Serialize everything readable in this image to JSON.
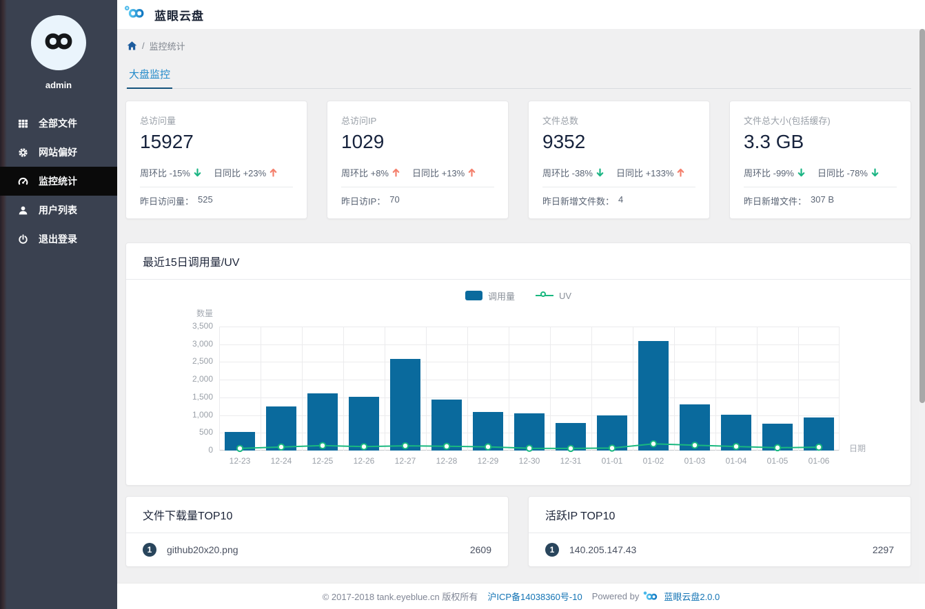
{
  "app": {
    "title": "蓝眼云盘"
  },
  "sidebar": {
    "username": "admin",
    "items": [
      {
        "name": "sidebar-item-all-files",
        "icon": "grid-icon",
        "label": "全部文件",
        "active": false
      },
      {
        "name": "sidebar-item-site-preferences",
        "icon": "gear-icon",
        "label": "网站偏好",
        "active": false
      },
      {
        "name": "sidebar-item-monitor-stats",
        "icon": "dashboard-icon",
        "label": "监控统计",
        "active": true
      },
      {
        "name": "sidebar-item-user-list",
        "icon": "user-icon",
        "label": "用户列表",
        "active": false
      },
      {
        "name": "sidebar-item-logout",
        "icon": "power-icon",
        "label": "退出登录",
        "active": false
      }
    ]
  },
  "breadcrumb": {
    "separator": "/",
    "current": "监控统计"
  },
  "tabs": {
    "active": "大盘监控"
  },
  "stat_cards": [
    {
      "name": "stat-card-total-visits",
      "label": "总访问量",
      "value": "15927",
      "trends": [
        {
          "text": "周环比 -15%",
          "dir": "down"
        },
        {
          "text": "日同比 +23%",
          "dir": "up"
        }
      ],
      "footer_label": "昨日访问量：",
      "footer_value": "525"
    },
    {
      "name": "stat-card-total-ips",
      "label": "总访问IP",
      "value": "1029",
      "trends": [
        {
          "text": "周环比 +8%",
          "dir": "up"
        },
        {
          "text": "日同比 +13%",
          "dir": "up"
        }
      ],
      "footer_label": "昨日访IP：",
      "footer_value": "70"
    },
    {
      "name": "stat-card-total-files",
      "label": "文件总数",
      "value": "9352",
      "trends": [
        {
          "text": "周环比 -38%",
          "dir": "down"
        },
        {
          "text": "日同比 +133%",
          "dir": "up"
        }
      ],
      "footer_label": "昨日新增文件数：",
      "footer_value": "4"
    },
    {
      "name": "stat-card-total-size",
      "label": "文件总大小(包括缓存)",
      "value": "3.3 GB",
      "trends": [
        {
          "text": "周环比 -99%",
          "dir": "down"
        },
        {
          "text": "日同比 -78%",
          "dir": "down"
        }
      ],
      "footer_label": "昨日新增文件：",
      "footer_value": "307 B"
    }
  ],
  "chart_data": {
    "type": "bar",
    "title": "最近15日调用量/UV",
    "categories": [
      "12-23",
      "12-24",
      "12-25",
      "12-26",
      "12-27",
      "12-28",
      "12-29",
      "12-30",
      "12-31",
      "01-01",
      "01-02",
      "01-03",
      "01-04",
      "01-05",
      "01-06"
    ],
    "series": [
      {
        "name": "调用量",
        "type": "bar",
        "color": "#0a6a9d",
        "values": [
          525,
          1250,
          1620,
          1520,
          2580,
          1440,
          1080,
          1050,
          780,
          1000,
          3100,
          1300,
          1010,
          750,
          930
        ]
      },
      {
        "name": "UV",
        "type": "line",
        "color": "#19b87f",
        "values": [
          60,
          100,
          140,
          110,
          135,
          120,
          105,
          65,
          60,
          70,
          190,
          150,
          115,
          80,
          95
        ]
      }
    ],
    "xlabel": "日期",
    "ylabel": "数量",
    "ylim": [
      0,
      3500
    ],
    "ytick_step": 500,
    "yticks": [
      "3,500",
      "3,000",
      "2,500",
      "2,000",
      "1,500",
      "1,000",
      "500",
      "0"
    ],
    "legend_position": "top-center",
    "grid": true
  },
  "top_files": {
    "title": "文件下载量TOP10",
    "rows": [
      {
        "rank": "1",
        "name": "github20x20.png",
        "value": "2609"
      }
    ]
  },
  "top_ips": {
    "title": "活跃IP TOP10",
    "rows": [
      {
        "rank": "1",
        "name": "140.205.147.43",
        "value": "2297"
      }
    ]
  },
  "footer": {
    "copyright": "© 2017-2018 tank.eyeblue.cn 版权所有",
    "icp": "沪ICP备14038360号-10",
    "powered": "Powered by",
    "product": "蓝眼云盘2.0.0"
  },
  "colors": {
    "sidebar_bg": "#3a4150",
    "active_item_bg": "#0a0a0a",
    "tab_blue": "#2189c9",
    "tab_underline": "#14527c",
    "bar_blue": "#0a6a9d",
    "line_teal": "#19b87f",
    "trend_up_orange": "#f4806d",
    "trend_down_green": "#1cb584",
    "badge_navy": "#29455c",
    "link_blue": "#1273b4"
  }
}
